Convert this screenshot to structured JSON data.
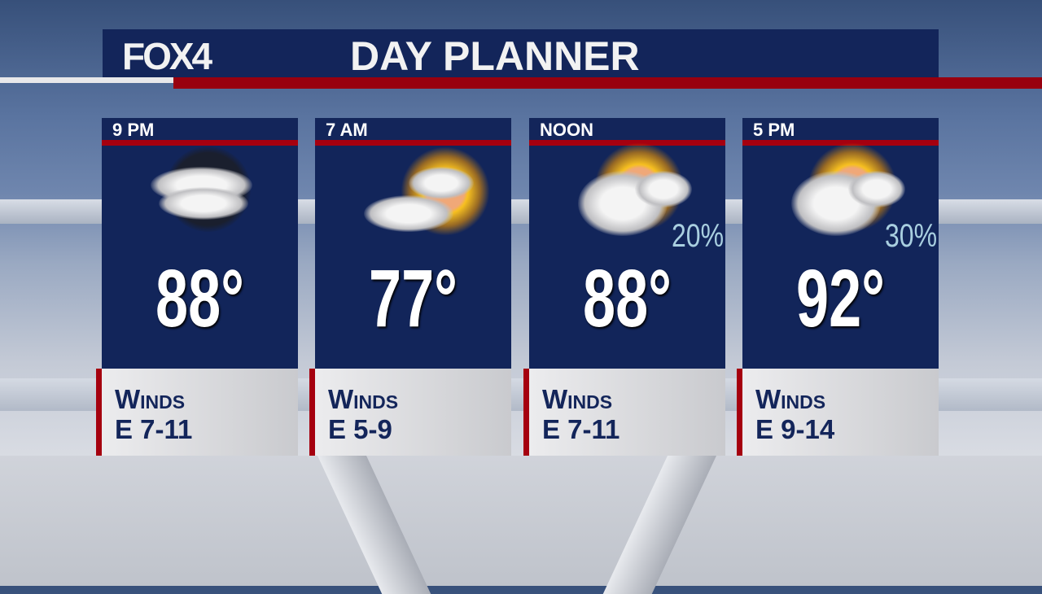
{
  "header": {
    "logo": "FOX4",
    "title": "DAY PLANNER"
  },
  "colors": {
    "navy": "#13255a",
    "red": "#a5000f",
    "pop_text": "#a9cfe0"
  },
  "panels": [
    {
      "time": "9 PM",
      "icon": "partly-cloudy-night-icon",
      "temp": "88°",
      "precip": "",
      "winds_label": "Winds",
      "winds": "E 7-11"
    },
    {
      "time": "7 AM",
      "icon": "partly-sunny-icon",
      "temp": "77°",
      "precip": "",
      "winds_label": "Winds",
      "winds": "E 5-9"
    },
    {
      "time": "NOON",
      "icon": "sun-cloud-showers-icon",
      "temp": "88°",
      "precip": "20%",
      "winds_label": "Winds",
      "winds": "E 7-11"
    },
    {
      "time": "5 PM",
      "icon": "sun-cloud-showers-icon",
      "temp": "92°",
      "precip": "30%",
      "winds_label": "Winds",
      "winds": "E 9-14"
    }
  ]
}
